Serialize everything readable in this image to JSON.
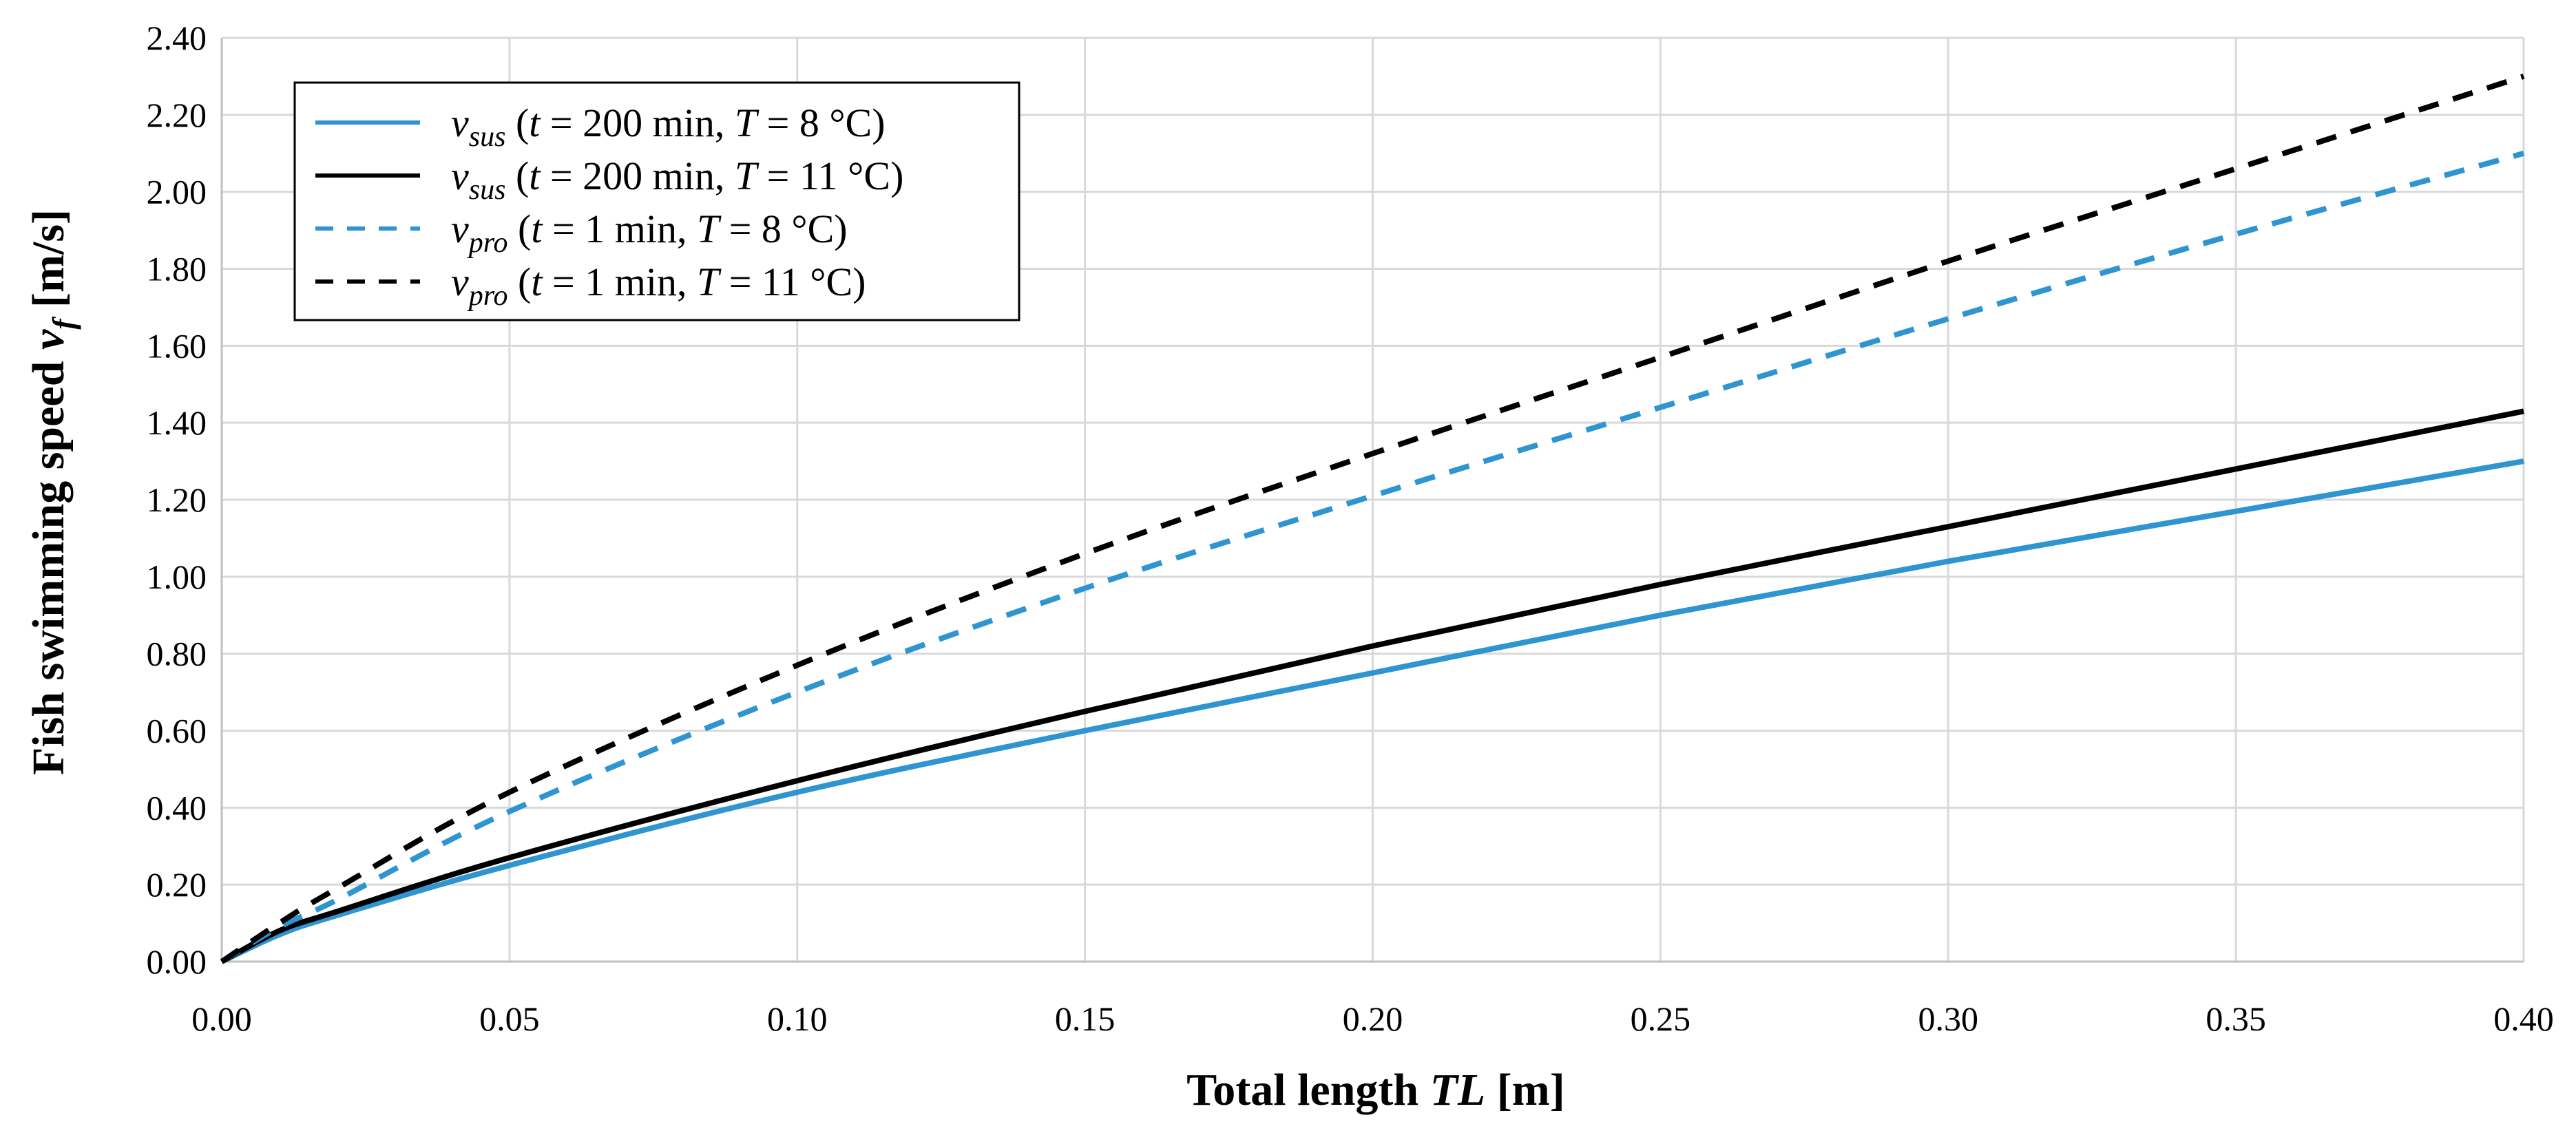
{
  "chart_data": {
    "type": "line",
    "xlabel": {
      "prefix": "Total length ",
      "italic": "TL",
      "suffix": " [m]"
    },
    "ylabel": {
      "prefix": "Fish swimming speed ",
      "italic": "v",
      "sub": "f",
      "suffix": " [m/s]"
    },
    "xlim": [
      0,
      0.4
    ],
    "ylim": [
      0,
      2.4
    ],
    "x_ticks": [
      "0.00",
      "0.05",
      "0.10",
      "0.15",
      "0.20",
      "0.25",
      "0.30",
      "0.35",
      "0.40"
    ],
    "y_ticks": [
      "0.00",
      "0.20",
      "0.40",
      "0.60",
      "0.80",
      "1.00",
      "1.20",
      "1.40",
      "1.60",
      "1.80",
      "2.00",
      "2.20",
      "2.40"
    ],
    "grid": true,
    "legend_position": "top-left",
    "series": [
      {
        "name": "v_sus (t = 200 min, T = 8 °C)",
        "symbol": "v",
        "sub": "sus",
        "t_value": "200 min",
        "T_value": "8 °C",
        "color": "#2e95d1",
        "dashed": false,
        "x": [
          0,
          0.01,
          0.02,
          0.05,
          0.1,
          0.15,
          0.2,
          0.25,
          0.3,
          0.35,
          0.4
        ],
        "values": [
          0,
          0.07,
          0.12,
          0.25,
          0.44,
          0.6,
          0.75,
          0.9,
          1.04,
          1.17,
          1.3
        ]
      },
      {
        "name": "v_sus (t = 200 min, T = 11 °C)",
        "symbol": "v",
        "sub": "sus",
        "t_value": "200 min",
        "T_value": "11 °C",
        "color": "#000000",
        "dashed": false,
        "x": [
          0,
          0.01,
          0.02,
          0.05,
          0.1,
          0.15,
          0.2,
          0.25,
          0.3,
          0.35,
          0.4
        ],
        "values": [
          0,
          0.08,
          0.13,
          0.27,
          0.47,
          0.65,
          0.82,
          0.98,
          1.13,
          1.28,
          1.43
        ]
      },
      {
        "name": "v_pro (t = 1 min, T = 8 °C)",
        "symbol": "v",
        "sub": "pro",
        "t_value": "1 min",
        "T_value": "8 °C",
        "color": "#2e95d1",
        "dashed": true,
        "x": [
          0,
          0.01,
          0.02,
          0.05,
          0.1,
          0.15,
          0.2,
          0.25,
          0.3,
          0.35,
          0.4
        ],
        "values": [
          0,
          0.09,
          0.16,
          0.39,
          0.7,
          0.97,
          1.21,
          1.44,
          1.67,
          1.89,
          2.1
        ]
      },
      {
        "name": "v_pro (t = 1 min, T = 11 °C)",
        "symbol": "v",
        "sub": "pro",
        "t_value": "1 min",
        "T_value": "11 °C",
        "color": "#000000",
        "dashed": true,
        "x": [
          0,
          0.01,
          0.02,
          0.05,
          0.1,
          0.15,
          0.2,
          0.25,
          0.3,
          0.35,
          0.4
        ],
        "values": [
          0,
          0.1,
          0.19,
          0.44,
          0.77,
          1.06,
          1.32,
          1.57,
          1.82,
          2.06,
          2.3
        ]
      }
    ]
  }
}
